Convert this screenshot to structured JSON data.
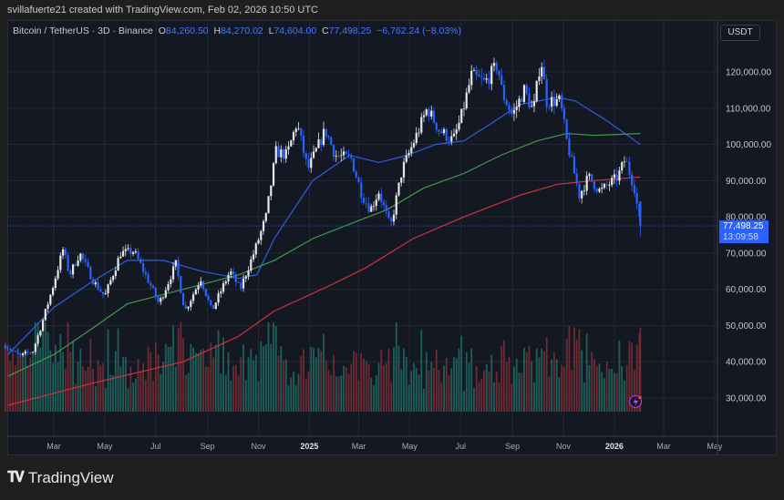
{
  "credit": "svillafuerte21 created with TradingView.com, Feb 02, 2026 10:50 UTC",
  "legend": {
    "symbol": "Bitcoin / TetherUS · 3D · Binance",
    "open_label": "O",
    "open": "84,260.50",
    "high_label": "H",
    "high": "84,270.02",
    "low_label": "L",
    "low": "74,604.00",
    "close_label": "C",
    "close": "77,498.25",
    "change": "−6,762.24 (−8.03%)"
  },
  "currency": "USDT",
  "price_label": {
    "price": "77,498.25",
    "countdown": "13:09:58"
  },
  "brand": "TradingView",
  "colors": {
    "up": "#e6e7ea",
    "down": "#2962ff",
    "vol_up": "#1e6d63",
    "vol_down": "#7d2f36",
    "ma_blue": "#2f5fe0",
    "ma_green": "#3f9a4a",
    "ma_red": "#d0313c",
    "accent": "#2962ff"
  },
  "chart_data": {
    "type": "candlestick",
    "interval": "3D",
    "yticks": [
      "120,000.00",
      "110,000.00",
      "100,000.00",
      "90,000.00",
      "80,000.00",
      "70,000.00",
      "60,000.00",
      "50,000.00",
      "40,000.00",
      "30,000.00"
    ],
    "ylim": [
      27000,
      126000
    ],
    "xticks": [
      {
        "label": "Mar",
        "date": "2024-03-01"
      },
      {
        "label": "May",
        "date": "2024-05-01"
      },
      {
        "label": "Jul",
        "date": "2024-07-01"
      },
      {
        "label": "Sep",
        "date": "2024-09-01"
      },
      {
        "label": "Nov",
        "date": "2024-11-01"
      },
      {
        "label": "2025",
        "date": "2025-01-01",
        "bold": true
      },
      {
        "label": "Mar",
        "date": "2025-03-01"
      },
      {
        "label": "May",
        "date": "2025-05-01"
      },
      {
        "label": "Jul",
        "date": "2025-07-01"
      },
      {
        "label": "Sep",
        "date": "2025-09-01"
      },
      {
        "label": "Nov",
        "date": "2025-11-01"
      },
      {
        "label": "2026",
        "date": "2026-01-01",
        "bold": true
      },
      {
        "label": "Mar",
        "date": "2026-03-01"
      },
      {
        "label": "May",
        "date": "2026-05-01"
      }
    ],
    "close_path": [
      [
        "2024-01-06",
        44000
      ],
      [
        "2024-01-20",
        41500
      ],
      [
        "2024-02-05",
        43000
      ],
      [
        "2024-02-15",
        50000
      ],
      [
        "2024-02-28",
        60000
      ],
      [
        "2024-03-12",
        71000
      ],
      [
        "2024-03-20",
        64000
      ],
      [
        "2024-04-01",
        70000
      ],
      [
        "2024-04-18",
        62000
      ],
      [
        "2024-05-01",
        58000
      ],
      [
        "2024-05-20",
        70000
      ],
      [
        "2024-06-05",
        70500
      ],
      [
        "2024-06-25",
        61000
      ],
      [
        "2024-07-05",
        56000
      ],
      [
        "2024-07-25",
        67000
      ],
      [
        "2024-08-05",
        54000
      ],
      [
        "2024-08-24",
        63000
      ],
      [
        "2024-09-06",
        54000
      ],
      [
        "2024-09-28",
        65000
      ],
      [
        "2024-10-10",
        60000
      ],
      [
        "2024-10-28",
        71000
      ],
      [
        "2024-11-10",
        80000
      ],
      [
        "2024-11-22",
        98000
      ],
      [
        "2024-12-05",
        97000
      ],
      [
        "2024-12-17",
        106000
      ],
      [
        "2024-12-30",
        93000
      ],
      [
        "2025-01-20",
        104000
      ],
      [
        "2025-02-01",
        97000
      ],
      [
        "2025-02-20",
        96000
      ],
      [
        "2025-03-05",
        86000
      ],
      [
        "2025-03-15",
        82000
      ],
      [
        "2025-03-25",
        87000
      ],
      [
        "2025-04-08",
        77000
      ],
      [
        "2025-04-22",
        93000
      ],
      [
        "2025-05-10",
        103000
      ],
      [
        "2025-05-22",
        110000
      ],
      [
        "2025-06-05",
        104000
      ],
      [
        "2025-06-22",
        101000
      ],
      [
        "2025-07-01",
        107000
      ],
      [
        "2025-07-14",
        119000
      ],
      [
        "2025-07-30",
        117000
      ],
      [
        "2025-08-14",
        122000
      ],
      [
        "2025-08-20",
        114000
      ],
      [
        "2025-09-01",
        108000
      ],
      [
        "2025-09-15",
        115000
      ],
      [
        "2025-09-26",
        109000
      ],
      [
        "2025-10-05",
        124000
      ],
      [
        "2025-10-12",
        112000
      ],
      [
        "2025-10-28",
        112000
      ],
      [
        "2025-11-05",
        101000
      ],
      [
        "2025-11-20",
        86000
      ],
      [
        "2025-12-01",
        91000
      ],
      [
        "2025-12-15",
        87000
      ],
      [
        "2026-01-05",
        91000
      ],
      [
        "2026-01-14",
        96000
      ],
      [
        "2026-01-25",
        88000
      ],
      [
        "2026-02-01",
        77498.25
      ]
    ],
    "last_candle": {
      "open": 84260.5,
      "high": 84270.02,
      "low": 74604.0,
      "close": 77498.25
    },
    "moving_averages": [
      {
        "color": "blue",
        "points": [
          [
            "2024-01-06",
            42000
          ],
          [
            "2024-03-01",
            55000
          ],
          [
            "2024-04-15",
            62000
          ],
          [
            "2024-05-28",
            68000
          ],
          [
            "2024-07-10",
            68000
          ],
          [
            "2024-08-25",
            65000
          ],
          [
            "2024-10-08",
            63000
          ],
          [
            "2024-10-30",
            64000
          ],
          [
            "2024-11-20",
            74000
          ],
          [
            "2025-01-05",
            90000
          ],
          [
            "2025-02-18",
            97000
          ],
          [
            "2025-03-25",
            95000
          ],
          [
            "2025-04-28",
            97000
          ],
          [
            "2025-06-01",
            100000
          ],
          [
            "2025-07-05",
            101000
          ],
          [
            "2025-08-08",
            106000
          ],
          [
            "2025-09-10",
            111000
          ],
          [
            "2025-10-25",
            113000
          ],
          [
            "2025-11-15",
            112000
          ],
          [
            "2025-12-20",
            107000
          ],
          [
            "2026-01-20",
            102000
          ],
          [
            "2026-02-01",
            100000
          ]
        ]
      },
      {
        "color": "green",
        "points": [
          [
            "2024-01-06",
            36000
          ],
          [
            "2024-03-01",
            42000
          ],
          [
            "2024-04-15",
            49000
          ],
          [
            "2024-05-28",
            56000
          ],
          [
            "2024-08-03",
            60000
          ],
          [
            "2024-10-08",
            64000
          ],
          [
            "2024-11-20",
            68000
          ],
          [
            "2025-01-05",
            74000
          ],
          [
            "2025-02-18",
            78000
          ],
          [
            "2025-04-04",
            82000
          ],
          [
            "2025-05-18",
            88000
          ],
          [
            "2025-07-05",
            92000
          ],
          [
            "2025-08-18",
            97000
          ],
          [
            "2025-10-01",
            101000
          ],
          [
            "2025-11-05",
            103000
          ],
          [
            "2025-12-08",
            102500
          ],
          [
            "2026-02-01",
            103000
          ]
        ]
      },
      {
        "color": "red",
        "points": [
          [
            "2024-01-06",
            28000
          ],
          [
            "2024-04-15",
            34000
          ],
          [
            "2024-08-03",
            40000
          ],
          [
            "2024-10-08",
            47000
          ],
          [
            "2024-11-20",
            54000
          ],
          [
            "2025-01-25",
            61000
          ],
          [
            "2025-03-10",
            66000
          ],
          [
            "2025-05-05",
            74000
          ],
          [
            "2025-07-05",
            80000
          ],
          [
            "2025-09-10",
            86000
          ],
          [
            "2025-10-25",
            89000
          ],
          [
            "2025-12-08",
            90000
          ],
          [
            "2026-02-01",
            91000
          ]
        ]
      }
    ]
  }
}
